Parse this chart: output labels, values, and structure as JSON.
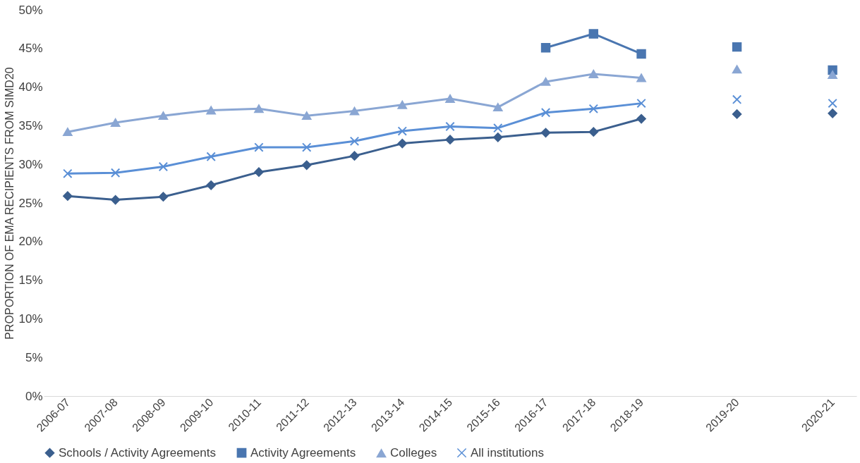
{
  "chart_data": {
    "type": "line",
    "ylabel": "PROPORTION OF EMA RECIPIENTS FROM SIMD20",
    "categories": [
      "2006-07",
      "2007-08",
      "2008-09",
      "2009-10",
      "2010-11",
      "2011-12",
      "2012-13",
      "2013-14",
      "2014-15",
      "2015-16",
      "2016-17",
      "2017-18",
      "2018-19",
      null,
      "2019-20",
      null,
      "2020-21"
    ],
    "series": [
      {
        "name": "Schools / Activity Agreements",
        "color": "#3b5f8e",
        "marker": "diamond",
        "values": [
          25.9,
          25.4,
          25.8,
          27.3,
          29.0,
          29.9,
          31.1,
          32.7,
          33.2,
          33.5,
          34.1,
          34.2,
          35.9,
          null,
          36.5,
          null,
          36.6
        ]
      },
      {
        "name": "Activity Agreements",
        "color": "#4a76b0",
        "marker": "square",
        "values": [
          null,
          null,
          null,
          null,
          null,
          null,
          null,
          null,
          null,
          null,
          45.1,
          46.9,
          44.3,
          null,
          45.2,
          null,
          42.2
        ]
      },
      {
        "name": "Colleges",
        "color": "#8aa6d3",
        "marker": "triangle",
        "values": [
          34.2,
          35.4,
          36.3,
          37.0,
          37.2,
          36.3,
          36.9,
          37.7,
          38.5,
          37.4,
          40.7,
          41.7,
          41.2,
          null,
          42.3,
          null,
          41.6
        ]
      },
      {
        "name": "All institutions",
        "color": "#5a8fd6",
        "marker": "cross",
        "values": [
          28.8,
          28.9,
          29.7,
          31.0,
          32.2,
          32.2,
          33.0,
          34.3,
          34.9,
          34.7,
          36.7,
          37.2,
          37.9,
          null,
          38.4,
          null,
          37.9
        ]
      }
    ],
    "ylim": [
      0,
      50
    ],
    "yticks": [
      {
        "value": 0,
        "label": "0%"
      },
      {
        "value": 5,
        "label": "5%"
      },
      {
        "value": 10,
        "label": "10%"
      },
      {
        "value": 15,
        "label": "15%"
      },
      {
        "value": 20,
        "label": "20%"
      },
      {
        "value": 25,
        "label": "25%"
      },
      {
        "value": 30,
        "label": "30%"
      },
      {
        "value": 35,
        "label": "35%"
      },
      {
        "value": 40,
        "label": "40%"
      },
      {
        "value": 45,
        "label": "45%"
      },
      {
        "value": 50,
        "label": "50%"
      }
    ],
    "grid": false,
    "legend": "bottom",
    "line_style": "solid"
  }
}
